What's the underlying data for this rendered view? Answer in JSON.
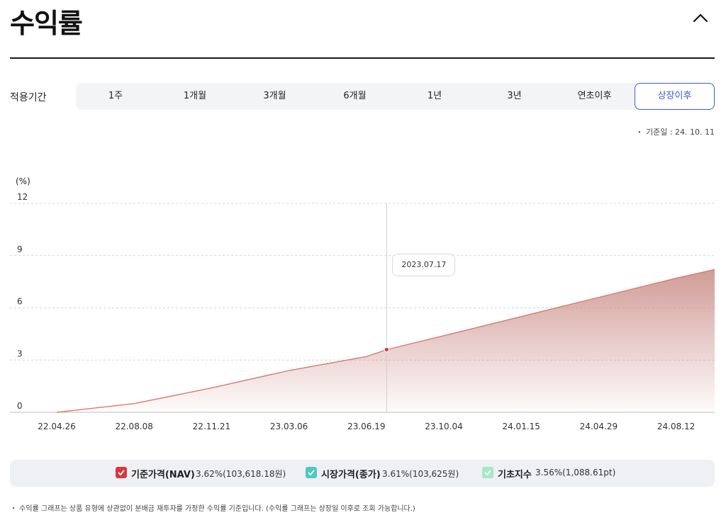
{
  "header": {
    "title": "수익률"
  },
  "period": {
    "label": "적용기간",
    "options": [
      "1주",
      "1개월",
      "3개월",
      "6개월",
      "1년",
      "3년",
      "연초이후",
      "상장이후"
    ],
    "selected": "상장이후"
  },
  "base_date": "・ 기준일 : 24. 10. 11",
  "tooltip": {
    "date": "2023.07.17"
  },
  "colors": {
    "nav": "#d9363e",
    "market": "#4cc9c0",
    "index": "#a8e6c4",
    "line": "#d77a74",
    "active": "#3b5bdb"
  },
  "chart_data": {
    "type": "area",
    "ylabel": "(%)",
    "ylim": [
      0,
      12
    ],
    "yticks": [
      "12",
      "9",
      "6",
      "3",
      "0"
    ],
    "xticks": [
      "22.04.26",
      "22.08.08",
      "22.11.21",
      "23.03.06",
      "23.06.19",
      "23.10.04",
      "24.01.15",
      "24.04.29",
      "24.08.12"
    ],
    "series": [
      {
        "name": "기준가격(NAV)",
        "x": [
          "22.04.26",
          "22.08.08",
          "22.11.21",
          "23.03.06",
          "23.06.19",
          "23.07.17",
          "23.10.04",
          "24.01.15",
          "24.04.29",
          "24.08.12",
          "24.10.11"
        ],
        "values": [
          0.0,
          0.5,
          1.4,
          2.4,
          3.2,
          3.6,
          4.4,
          5.5,
          6.6,
          7.7,
          8.2
        ]
      }
    ],
    "highlight": {
      "x": "23.07.17",
      "value": 3.6
    },
    "grid": true
  },
  "legend": [
    {
      "name": "기준가격(NAV)",
      "value": "3.62%(103,618.18원)",
      "color": "#d9363e"
    },
    {
      "name": "시장가격(종가)",
      "value": "3.61%(103,625원)",
      "color": "#4cc9c0"
    },
    {
      "name": "기초지수",
      "value": "3.56%(1,088.61pt)",
      "color": "#a8e6c4"
    }
  ],
  "footnote": "・ 수익률 그래프는 상품 유형에 상관없이 분배금 재투자를 가정한 수익률 기준입니다. (수익률 그래프는 상장일 이후로 조회 가능합니다.)"
}
